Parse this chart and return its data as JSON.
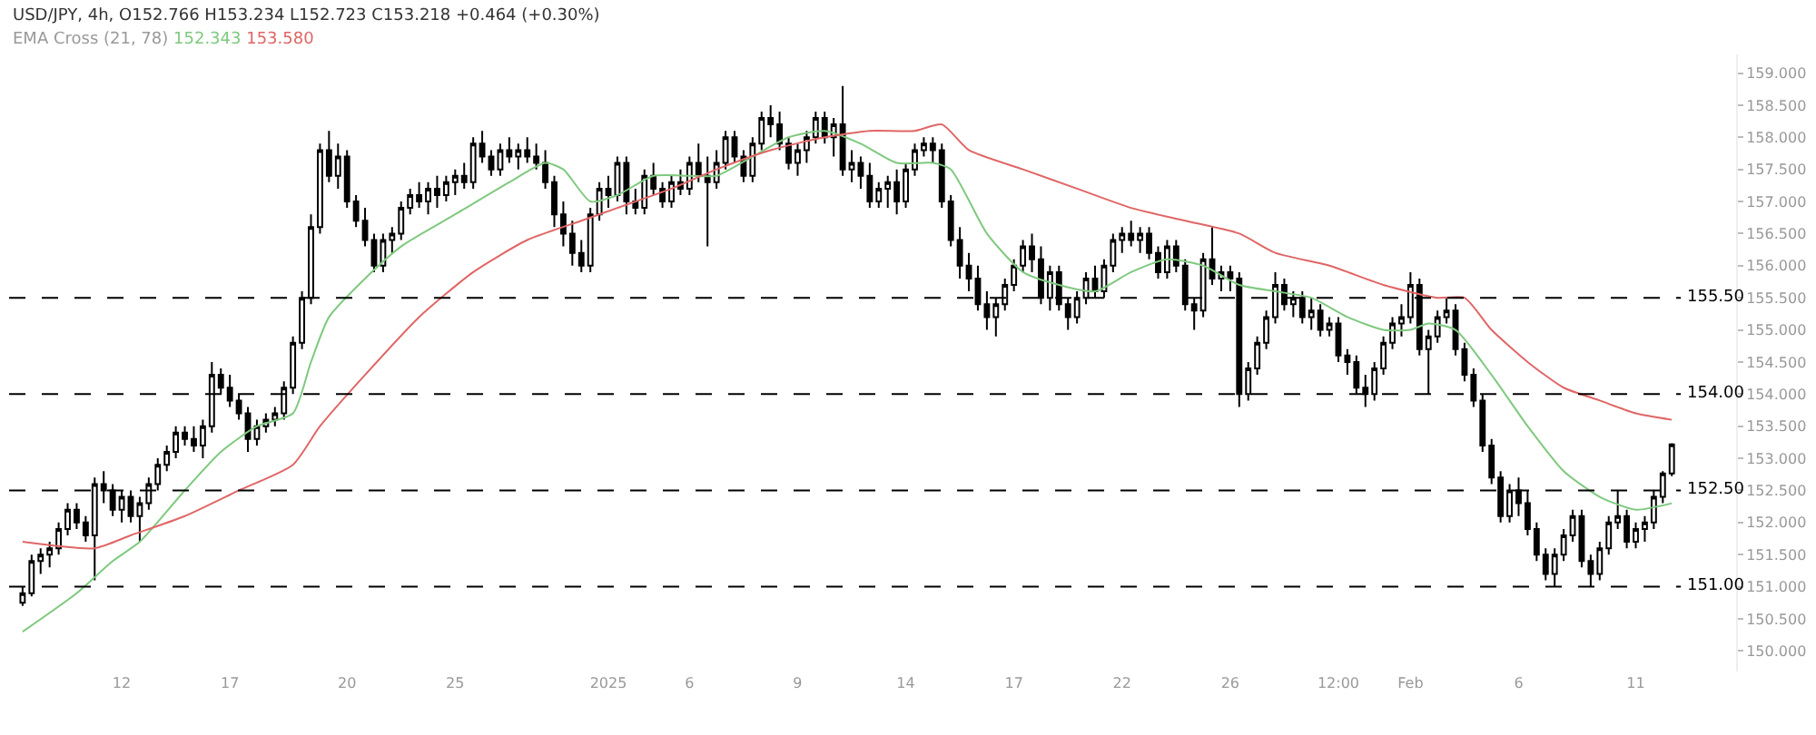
{
  "chart_data": {
    "type": "candlestick",
    "title": "USD/JPY, 4h, O152.766 H153.234 L152.723 C153.218 +0.464 (+0.30%)",
    "subtitle": "EMA Cross (21, 78)",
    "annotations": [
      "152.343",
      "153.580"
    ],
    "categories": [
      null,
      null,
      null,
      null,
      null,
      null,
      null,
      null,
      null,
      null,
      null,
      "12",
      null,
      null,
      null,
      null,
      null,
      null,
      null,
      null,
      null,
      null,
      null,
      "17",
      null,
      null,
      null,
      null,
      null,
      null,
      null,
      null,
      null,
      null,
      null,
      null,
      "20",
      null,
      null,
      null,
      null,
      null,
      null,
      null,
      null,
      null,
      null,
      null,
      "25",
      null,
      null,
      null,
      null,
      null,
      null,
      null,
      null,
      null,
      null,
      null,
      null,
      null,
      null,
      null,
      null,
      "2025",
      null,
      null,
      null,
      null,
      null,
      null,
      null,
      null,
      "6",
      null,
      null,
      null,
      null,
      null,
      null,
      null,
      null,
      null,
      null,
      null,
      "9",
      null,
      null,
      null,
      null,
      null,
      null,
      null,
      null,
      null,
      null,
      null,
      "14",
      null,
      null,
      null,
      null,
      null,
      null,
      null,
      null,
      null,
      null,
      null,
      "17",
      null,
      null,
      null,
      null,
      null,
      null,
      null,
      null,
      null,
      null,
      null,
      "22",
      null,
      null,
      null,
      null,
      null,
      null,
      null,
      null,
      null,
      null,
      null,
      "26",
      null,
      null,
      null,
      null,
      null,
      null,
      null,
      null,
      null,
      null,
      null,
      "12:00",
      null,
      null,
      null,
      null,
      null,
      null,
      null,
      "Feb",
      null,
      null,
      null,
      null,
      null,
      null,
      null,
      null,
      null,
      null,
      null,
      "6",
      null,
      null,
      null,
      null,
      null,
      null,
      null,
      null,
      null,
      null,
      null,
      null,
      "11",
      null,
      null,
      null,
      null
    ],
    "ohlc": [
      [
        150.75,
        151.0,
        150.7,
        150.9
      ],
      [
        150.9,
        151.5,
        150.85,
        151.4
      ],
      [
        151.4,
        151.6,
        151.2,
        151.5
      ],
      [
        151.5,
        151.7,
        151.3,
        151.6
      ],
      [
        151.6,
        152.0,
        151.5,
        151.9
      ],
      [
        151.9,
        152.3,
        151.8,
        152.2
      ],
      [
        152.2,
        152.3,
        151.9,
        152.0
      ],
      [
        152.0,
        152.1,
        151.7,
        151.8
      ],
      [
        151.8,
        152.7,
        151.1,
        152.6
      ],
      [
        152.6,
        152.8,
        152.3,
        152.5
      ],
      [
        152.5,
        152.6,
        152.1,
        152.2
      ],
      [
        152.2,
        152.5,
        152.0,
        152.4
      ],
      [
        152.4,
        152.5,
        152.0,
        152.1
      ],
      [
        152.1,
        152.4,
        151.7,
        152.3
      ],
      [
        152.3,
        152.7,
        152.2,
        152.6
      ],
      [
        152.6,
        153.0,
        152.5,
        152.9
      ],
      [
        152.9,
        153.2,
        152.8,
        153.1
      ],
      [
        153.1,
        153.5,
        153.0,
        153.4
      ],
      [
        153.4,
        153.5,
        153.2,
        153.3
      ],
      [
        153.3,
        153.5,
        153.1,
        153.2
      ],
      [
        153.2,
        153.6,
        153.0,
        153.5
      ],
      [
        153.5,
        154.5,
        153.4,
        154.3
      ],
      [
        154.3,
        154.4,
        154.0,
        154.1
      ],
      [
        154.1,
        154.3,
        153.8,
        153.9
      ],
      [
        153.9,
        154.0,
        153.6,
        153.7
      ],
      [
        153.7,
        153.8,
        153.1,
        153.3
      ],
      [
        153.3,
        153.6,
        153.2,
        153.5
      ],
      [
        153.5,
        153.7,
        153.4,
        153.6
      ],
      [
        153.6,
        153.8,
        153.5,
        153.7
      ],
      [
        153.7,
        154.2,
        153.6,
        154.1
      ],
      [
        154.1,
        154.9,
        154.0,
        154.8
      ],
      [
        154.8,
        155.6,
        154.7,
        155.5
      ],
      [
        155.5,
        156.8,
        155.4,
        156.6
      ],
      [
        156.6,
        157.9,
        156.5,
        157.8
      ],
      [
        157.8,
        158.1,
        157.3,
        157.4
      ],
      [
        157.4,
        157.9,
        157.2,
        157.7
      ],
      [
        157.7,
        157.8,
        156.9,
        157.0
      ],
      [
        157.0,
        157.1,
        156.6,
        156.7
      ],
      [
        156.7,
        156.9,
        156.3,
        156.4
      ],
      [
        156.4,
        156.5,
        155.9,
        156.0
      ],
      [
        156.0,
        156.5,
        155.9,
        156.4
      ],
      [
        156.4,
        156.6,
        156.2,
        156.5
      ],
      [
        156.5,
        157.0,
        156.4,
        156.9
      ],
      [
        156.9,
        157.2,
        156.8,
        157.1
      ],
      [
        157.1,
        157.3,
        156.9,
        157.0
      ],
      [
        157.0,
        157.3,
        156.8,
        157.2
      ],
      [
        157.2,
        157.4,
        156.9,
        157.1
      ],
      [
        157.1,
        157.4,
        157.0,
        157.3
      ],
      [
        157.3,
        157.5,
        157.1,
        157.4
      ],
      [
        157.4,
        157.6,
        157.2,
        157.3
      ],
      [
        157.3,
        158.0,
        157.2,
        157.9
      ],
      [
        157.9,
        158.1,
        157.6,
        157.7
      ],
      [
        157.7,
        157.8,
        157.4,
        157.5
      ],
      [
        157.5,
        157.9,
        157.4,
        157.8
      ],
      [
        157.8,
        158.0,
        157.6,
        157.7
      ],
      [
        157.7,
        157.9,
        157.5,
        157.8
      ],
      [
        157.8,
        158.0,
        157.6,
        157.7
      ],
      [
        157.7,
        157.9,
        157.5,
        157.6
      ],
      [
        157.6,
        157.8,
        157.2,
        157.3
      ],
      [
        157.3,
        157.4,
        156.6,
        156.8
      ],
      [
        156.8,
        157.0,
        156.3,
        156.5
      ],
      [
        156.5,
        156.7,
        156.0,
        156.2
      ],
      [
        156.2,
        156.4,
        155.9,
        156.0
      ],
      [
        156.0,
        156.9,
        155.9,
        156.8
      ],
      [
        156.8,
        157.3,
        156.7,
        157.2
      ],
      [
        157.2,
        157.4,
        156.9,
        157.1
      ],
      [
        157.1,
        157.7,
        157.0,
        157.6
      ],
      [
        157.6,
        157.7,
        156.8,
        157.0
      ],
      [
        157.0,
        157.2,
        156.8,
        156.9
      ],
      [
        156.9,
        157.5,
        156.8,
        157.4
      ],
      [
        157.4,
        157.6,
        157.1,
        157.2
      ],
      [
        157.2,
        157.3,
        156.9,
        157.0
      ],
      [
        157.0,
        157.4,
        156.9,
        157.3
      ],
      [
        157.3,
        157.5,
        157.1,
        157.2
      ],
      [
        157.2,
        157.7,
        157.1,
        157.6
      ],
      [
        157.6,
        157.9,
        157.3,
        157.4
      ],
      [
        157.4,
        157.7,
        156.3,
        157.3
      ],
      [
        157.3,
        157.8,
        157.2,
        157.6
      ],
      [
        157.6,
        158.1,
        157.5,
        158.0
      ],
      [
        158.0,
        158.1,
        157.6,
        157.7
      ],
      [
        157.7,
        157.8,
        157.3,
        157.4
      ],
      [
        157.4,
        158.0,
        157.3,
        157.9
      ],
      [
        157.9,
        158.4,
        157.8,
        158.3
      ],
      [
        158.3,
        158.5,
        158.0,
        158.2
      ],
      [
        158.2,
        158.4,
        157.8,
        157.9
      ],
      [
        157.9,
        158.0,
        157.5,
        157.6
      ],
      [
        157.6,
        157.9,
        157.4,
        157.8
      ],
      [
        157.8,
        158.1,
        157.6,
        158.0
      ],
      [
        158.0,
        158.4,
        157.9,
        158.3
      ],
      [
        158.3,
        158.4,
        157.9,
        158.0
      ],
      [
        158.0,
        158.3,
        157.7,
        158.2
      ],
      [
        158.2,
        158.8,
        157.4,
        157.5
      ],
      [
        157.5,
        157.8,
        157.3,
        157.6
      ],
      [
        157.6,
        157.7,
        157.2,
        157.4
      ],
      [
        157.4,
        157.6,
        156.9,
        157.0
      ],
      [
        157.0,
        157.3,
        156.9,
        157.2
      ],
      [
        157.2,
        157.4,
        156.9,
        157.3
      ],
      [
        157.3,
        157.5,
        156.8,
        157.0
      ],
      [
        157.0,
        157.6,
        156.9,
        157.5
      ],
      [
        157.5,
        157.9,
        157.4,
        157.8
      ],
      [
        157.8,
        158.0,
        157.7,
        157.9
      ],
      [
        157.9,
        158.0,
        157.6,
        157.8
      ],
      [
        157.8,
        157.9,
        156.9,
        157.0
      ],
      [
        157.0,
        157.1,
        156.3,
        156.4
      ],
      [
        156.4,
        156.6,
        155.8,
        156.0
      ],
      [
        156.0,
        156.2,
        155.6,
        155.8
      ],
      [
        155.8,
        156.0,
        155.3,
        155.4
      ],
      [
        155.4,
        155.6,
        155.0,
        155.2
      ],
      [
        155.2,
        155.5,
        154.9,
        155.4
      ],
      [
        155.4,
        155.8,
        155.3,
        155.7
      ],
      [
        155.7,
        156.1,
        155.6,
        156.0
      ],
      [
        156.0,
        156.4,
        155.9,
        156.3
      ],
      [
        156.3,
        156.5,
        155.9,
        156.1
      ],
      [
        156.1,
        156.3,
        155.4,
        155.5
      ],
      [
        155.5,
        156.0,
        155.3,
        155.9
      ],
      [
        155.9,
        156.0,
        155.3,
        155.4
      ],
      [
        155.4,
        155.5,
        155.0,
        155.2
      ],
      [
        155.2,
        155.6,
        155.1,
        155.5
      ],
      [
        155.5,
        155.9,
        155.4,
        155.8
      ],
      [
        155.8,
        156.0,
        155.5,
        155.6
      ],
      [
        155.6,
        156.1,
        155.5,
        156.0
      ],
      [
        156.0,
        156.5,
        155.9,
        156.4
      ],
      [
        156.4,
        156.6,
        156.2,
        156.5
      ],
      [
        156.5,
        156.7,
        156.3,
        156.4
      ],
      [
        156.4,
        156.6,
        156.2,
        156.5
      ],
      [
        156.5,
        156.6,
        156.1,
        156.2
      ],
      [
        156.2,
        156.3,
        155.8,
        155.9
      ],
      [
        155.9,
        156.4,
        155.8,
        156.3
      ],
      [
        156.3,
        156.4,
        155.9,
        156.0
      ],
      [
        156.0,
        156.1,
        155.3,
        155.4
      ],
      [
        155.4,
        155.5,
        155.0,
        155.3
      ],
      [
        155.3,
        156.2,
        155.2,
        156.1
      ],
      [
        156.1,
        156.6,
        155.7,
        155.8
      ],
      [
        155.8,
        156.0,
        155.6,
        155.9
      ],
      [
        155.9,
        156.0,
        155.6,
        155.8
      ],
      [
        155.8,
        155.9,
        153.8,
        154.0
      ],
      [
        154.0,
        154.5,
        153.9,
        154.4
      ],
      [
        154.4,
        154.9,
        154.3,
        154.8
      ],
      [
        154.8,
        155.3,
        154.7,
        155.2
      ],
      [
        155.2,
        155.9,
        155.1,
        155.7
      ],
      [
        155.7,
        155.8,
        155.3,
        155.4
      ],
      [
        155.4,
        155.6,
        155.2,
        155.5
      ],
      [
        155.5,
        155.6,
        155.1,
        155.2
      ],
      [
        155.2,
        155.5,
        155.0,
        155.3
      ],
      [
        155.3,
        155.4,
        154.9,
        155.0
      ],
      [
        155.0,
        155.2,
        154.9,
        155.1
      ],
      [
        155.1,
        155.2,
        154.5,
        154.6
      ],
      [
        154.6,
        154.7,
        154.3,
        154.5
      ],
      [
        154.5,
        154.6,
        154.0,
        154.1
      ],
      [
        154.1,
        154.3,
        153.8,
        154.0
      ],
      [
        154.0,
        154.5,
        153.9,
        154.4
      ],
      [
        154.4,
        154.9,
        154.3,
        154.8
      ],
      [
        154.8,
        155.2,
        154.7,
        155.1
      ],
      [
        155.1,
        155.4,
        154.9,
        155.2
      ],
      [
        155.2,
        155.9,
        155.1,
        155.7
      ],
      [
        155.7,
        155.8,
        154.6,
        154.7
      ],
      [
        154.7,
        155.0,
        154.0,
        154.9
      ],
      [
        154.9,
        155.3,
        154.8,
        155.2
      ],
      [
        155.2,
        155.5,
        155.1,
        155.3
      ],
      [
        155.3,
        155.4,
        154.6,
        154.7
      ],
      [
        154.7,
        154.8,
        154.2,
        154.3
      ],
      [
        154.3,
        154.4,
        153.8,
        153.9
      ],
      [
        153.9,
        154.0,
        153.1,
        153.2
      ],
      [
        153.2,
        153.3,
        152.6,
        152.7
      ],
      [
        152.7,
        152.8,
        152.0,
        152.1
      ],
      [
        152.1,
        152.6,
        152.0,
        152.5
      ],
      [
        152.5,
        152.7,
        152.1,
        152.3
      ],
      [
        152.3,
        152.5,
        151.8,
        151.9
      ],
      [
        151.9,
        152.0,
        151.4,
        151.5
      ],
      [
        151.5,
        151.6,
        151.1,
        151.2
      ],
      [
        151.2,
        151.6,
        151.0,
        151.5
      ],
      [
        151.5,
        151.9,
        151.4,
        151.8
      ],
      [
        151.8,
        152.2,
        151.7,
        152.1
      ],
      [
        152.1,
        152.2,
        151.3,
        151.4
      ],
      [
        151.4,
        151.5,
        151.0,
        151.2
      ],
      [
        151.2,
        151.7,
        151.1,
        151.6
      ],
      [
        151.6,
        152.1,
        151.5,
        152.0
      ],
      [
        152.0,
        152.5,
        151.9,
        152.1
      ],
      [
        152.1,
        152.2,
        151.6,
        151.7
      ],
      [
        151.7,
        152.0,
        151.6,
        151.9
      ],
      [
        151.9,
        152.1,
        151.7,
        152.0
      ],
      [
        152.0,
        152.5,
        151.9,
        152.4
      ],
      [
        152.4,
        152.8,
        152.3,
        152.766
      ],
      [
        152.766,
        153.234,
        152.723,
        153.218
      ]
    ],
    "series": [
      {
        "type": "line",
        "color": "#7fc97f",
        "values": [
          150.3,
          null,
          null,
          null,
          null,
          null,
          150.9,
          null,
          null,
          null,
          151.4,
          null,
          null,
          151.7,
          null,
          null,
          null,
          null,
          152.5,
          null,
          null,
          null,
          153.1,
          null,
          null,
          null,
          153.5,
          null,
          null,
          null,
          153.7,
          null,
          154.5,
          null,
          155.2,
          null,
          null,
          null,
          155.8,
          null,
          null,
          null,
          156.3,
          null,
          null,
          null,
          null,
          null,
          156.8,
          null,
          null,
          null,
          null,
          null,
          157.3,
          null,
          null,
          null,
          157.6,
          null,
          157.5,
          null,
          null,
          157.0,
          null,
          null,
          157.1,
          null,
          null,
          null,
          157.4,
          null,
          null,
          null,
          157.4,
          null,
          null,
          157.4,
          null,
          null,
          null,
          157.7,
          null,
          null,
          null,
          158.0,
          null,
          null,
          null,
          158.1,
          null,
          null,
          null,
          157.9,
          null,
          null,
          null,
          157.6,
          null,
          null,
          null,
          157.6,
          null,
          157.5,
          null,
          null,
          null,
          156.5,
          null,
          null,
          null,
          155.9,
          null,
          null,
          null,
          155.7,
          null,
          null,
          null,
          155.6,
          null,
          null,
          null,
          155.9,
          null,
          null,
          null,
          156.1,
          null,
          null,
          null,
          156.0,
          null,
          null,
          null,
          155.7,
          null,
          null,
          null,
          155.6,
          null,
          null,
          null,
          155.5,
          null,
          null,
          null,
          155.2,
          null,
          null,
          null,
          155.0,
          null,
          null,
          155.0,
          null,
          155.1,
          null,
          null,
          155.0,
          null,
          null,
          null,
          154.3,
          null,
          null,
          null,
          153.5,
          null,
          null,
          null,
          152.8,
          null,
          null,
          null,
          152.4,
          null,
          null,
          null,
          152.2,
          null,
          null,
          null,
          152.3
        ]
      },
      {
        "type": "line",
        "color": "#e06666",
        "values": [
          151.7,
          null,
          null,
          null,
          null,
          null,
          null,
          null,
          151.6,
          null,
          null,
          null,
          151.8,
          null,
          null,
          null,
          null,
          null,
          152.1,
          null,
          null,
          null,
          null,
          null,
          152.5,
          null,
          null,
          null,
          null,
          null,
          152.9,
          null,
          null,
          153.5,
          null,
          null,
          null,
          null,
          154.3,
          null,
          null,
          null,
          null,
          null,
          155.2,
          null,
          null,
          null,
          null,
          null,
          155.9,
          null,
          null,
          null,
          null,
          null,
          156.4,
          null,
          null,
          null,
          null,
          null,
          156.7,
          null,
          null,
          null,
          156.9,
          null,
          null,
          null,
          null,
          null,
          157.2,
          null,
          null,
          null,
          null,
          157.5,
          null,
          null,
          null,
          null,
          null,
          157.8,
          null,
          null,
          null,
          null,
          null,
          158.0,
          null,
          null,
          null,
          null,
          158.1,
          null,
          null,
          null,
          null,
          158.1,
          null,
          null,
          158.2,
          null,
          null,
          157.8,
          null,
          null,
          null,
          null,
          null,
          157.5,
          null,
          null,
          null,
          null,
          null,
          157.2,
          null,
          null,
          null,
          null,
          null,
          156.9,
          null,
          null,
          null,
          null,
          null,
          156.7,
          null,
          null,
          null,
          null,
          null,
          156.5,
          null,
          null,
          null,
          156.2,
          null,
          null,
          null,
          null,
          null,
          156.0,
          null,
          null,
          null,
          null,
          null,
          155.7,
          null,
          null,
          null,
          null,
          null,
          155.5,
          null,
          null,
          155.5,
          null,
          null,
          155.0,
          null,
          null,
          null,
          154.5,
          null,
          null,
          null,
          154.1,
          null,
          null,
          null,
          153.9,
          null,
          null,
          null,
          153.7,
          null,
          null,
          null,
          153.6
        ]
      }
    ],
    "ref_lines": [
      {
        "axis": "y",
        "value": 155.5,
        "label": "155.50",
        "color": "#000000",
        "line_style": "dashed"
      },
      {
        "axis": "y",
        "value": 154.0,
        "label": "154.00",
        "color": "#000000",
        "line_style": "dashed"
      },
      {
        "axis": "y",
        "value": 152.5,
        "label": "152.50",
        "color": "#000000",
        "line_style": "dashed"
      },
      {
        "axis": "y",
        "value": 151.0,
        "label": "151.00",
        "color": "#000000",
        "line_style": "dashed"
      }
    ],
    "ylim": [
      149.68,
      159.29
    ],
    "yticks": [
      {
        "value": 150,
        "label": "150.000"
      },
      {
        "value": 150.5,
        "label": "150.500"
      },
      {
        "value": 151,
        "label": "151.000"
      },
      {
        "value": 151.5,
        "label": "151.500"
      },
      {
        "value": 152,
        "label": "152.000"
      },
      {
        "value": 152.5,
        "label": "152.500"
      },
      {
        "value": 153,
        "label": "153.000"
      },
      {
        "value": 153.5,
        "label": "153.500"
      },
      {
        "value": 154,
        "label": "154.000"
      },
      {
        "value": 154.5,
        "label": "154.500"
      },
      {
        "value": 155,
        "label": "155.000"
      },
      {
        "value": 155.5,
        "label": "155.500"
      },
      {
        "value": 156,
        "label": "156.000"
      },
      {
        "value": 156.5,
        "label": "156.500"
      },
      {
        "value": 157,
        "label": "157.000"
      },
      {
        "value": 157.5,
        "label": "157.500"
      },
      {
        "value": 158,
        "label": "158.000"
      },
      {
        "value": 158.5,
        "label": "158.500"
      },
      {
        "value": 159,
        "label": "159.000"
      }
    ]
  }
}
